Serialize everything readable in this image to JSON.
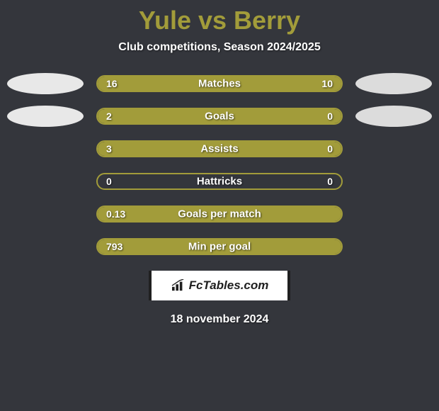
{
  "title": "Yule vs Berry",
  "subtitle": "Club competitions, Season 2024/2025",
  "date": "18 november 2024",
  "logo_text": "FcTables.com",
  "colors": {
    "background": "#34363c",
    "accent": "#a29c3a",
    "text": "#ffffff",
    "ellipse_left": "#e8e8e8",
    "ellipse_right": "#dcdcdc",
    "logo_bg": "#ffffff",
    "logo_text": "#202020"
  },
  "stats": [
    {
      "label": "Matches",
      "left_value": "16",
      "right_value": "10",
      "left_fill_pct": 62,
      "right_fill_pct": 0,
      "full_fill": true,
      "show_ellipse": true
    },
    {
      "label": "Goals",
      "left_value": "2",
      "right_value": "0",
      "left_fill_pct": 76,
      "right_fill_pct": 24,
      "full_fill": false,
      "show_ellipse": true
    },
    {
      "label": "Assists",
      "left_value": "3",
      "right_value": "0",
      "left_fill_pct": 76,
      "right_fill_pct": 24,
      "full_fill": false,
      "show_ellipse": false
    },
    {
      "label": "Hattricks",
      "left_value": "0",
      "right_value": "0",
      "left_fill_pct": 0,
      "right_fill_pct": 0,
      "full_fill": false,
      "show_ellipse": false
    },
    {
      "label": "Goals per match",
      "left_value": "0.13",
      "right_value": "",
      "left_fill_pct": 100,
      "right_fill_pct": 0,
      "full_fill": true,
      "show_ellipse": false
    },
    {
      "label": "Min per goal",
      "left_value": "793",
      "right_value": "",
      "left_fill_pct": 100,
      "right_fill_pct": 0,
      "full_fill": true,
      "show_ellipse": false
    }
  ]
}
